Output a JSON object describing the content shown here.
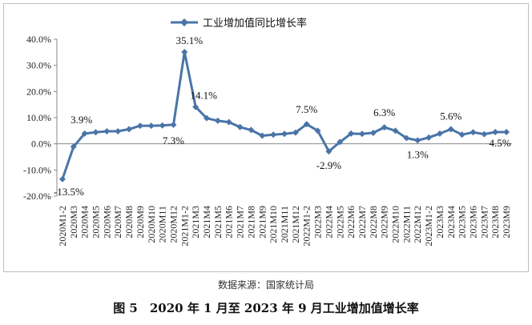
{
  "chart_data": {
    "type": "line",
    "legend": {
      "label": "工业增加值同比增长率",
      "placement": "top"
    },
    "color": "#4a74a8",
    "ylim": [
      -20,
      40
    ],
    "yticks": [
      "40.0%",
      "30.0%",
      "20.0%",
      "10.0%",
      "0.0%",
      "-10.0%",
      "-20.0%"
    ],
    "categories": [
      "2020M1-2",
      "2020M3",
      "2020M4",
      "2020M5",
      "2020M6",
      "2020M7",
      "2020M8",
      "2020M9",
      "2020M10",
      "2020M11",
      "2020M12",
      "2021M1-2",
      "2021M3",
      "2021M4",
      "2021M5",
      "2021M6",
      "2021M7",
      "2021M8",
      "2021M9",
      "2021M10",
      "2021M11",
      "2021M12",
      "2022M1-2",
      "2022M3",
      "2022M4",
      "2022M5",
      "2022M6",
      "2022M7",
      "2022M8",
      "2022M9",
      "2022M10",
      "2022M11",
      "2022M12",
      "2023M1-2",
      "2023M3",
      "2023M4",
      "2023M5",
      "2023M6",
      "2023M7",
      "2023M8",
      "2023M9"
    ],
    "values": [
      -13.5,
      -1.1,
      3.9,
      4.4,
      4.8,
      4.8,
      5.6,
      6.9,
      6.9,
      7.0,
      7.3,
      35.1,
      14.1,
      9.8,
      8.8,
      8.3,
      6.4,
      5.3,
      3.1,
      3.5,
      3.8,
      4.3,
      7.5,
      5.0,
      -2.9,
      0.7,
      3.9,
      3.8,
      4.2,
      6.3,
      5.0,
      2.2,
      1.3,
      2.4,
      3.9,
      5.6,
      3.5,
      4.4,
      3.7,
      4.5,
      4.5
    ],
    "data_labels": [
      {
        "index": 0,
        "text": "-13.5%"
      },
      {
        "index": 2,
        "text": "3.9%"
      },
      {
        "index": 10,
        "text": "7.3%"
      },
      {
        "index": 11,
        "text": "35.1%"
      },
      {
        "index": 12,
        "text": "14.1%"
      },
      {
        "index": 22,
        "text": "7.5%"
      },
      {
        "index": 24,
        "text": "-2.9%"
      },
      {
        "index": 29,
        "text": "6.3%"
      },
      {
        "index": 32,
        "text": "1.3%"
      },
      {
        "index": 35,
        "text": "5.6%"
      },
      {
        "index": 40,
        "text": "4.5%"
      }
    ],
    "grid": false
  },
  "source": "数据来源：国家统计局",
  "caption": "图 5　2020 年 1 月至 2023 年 9 月工业增加值增长率"
}
